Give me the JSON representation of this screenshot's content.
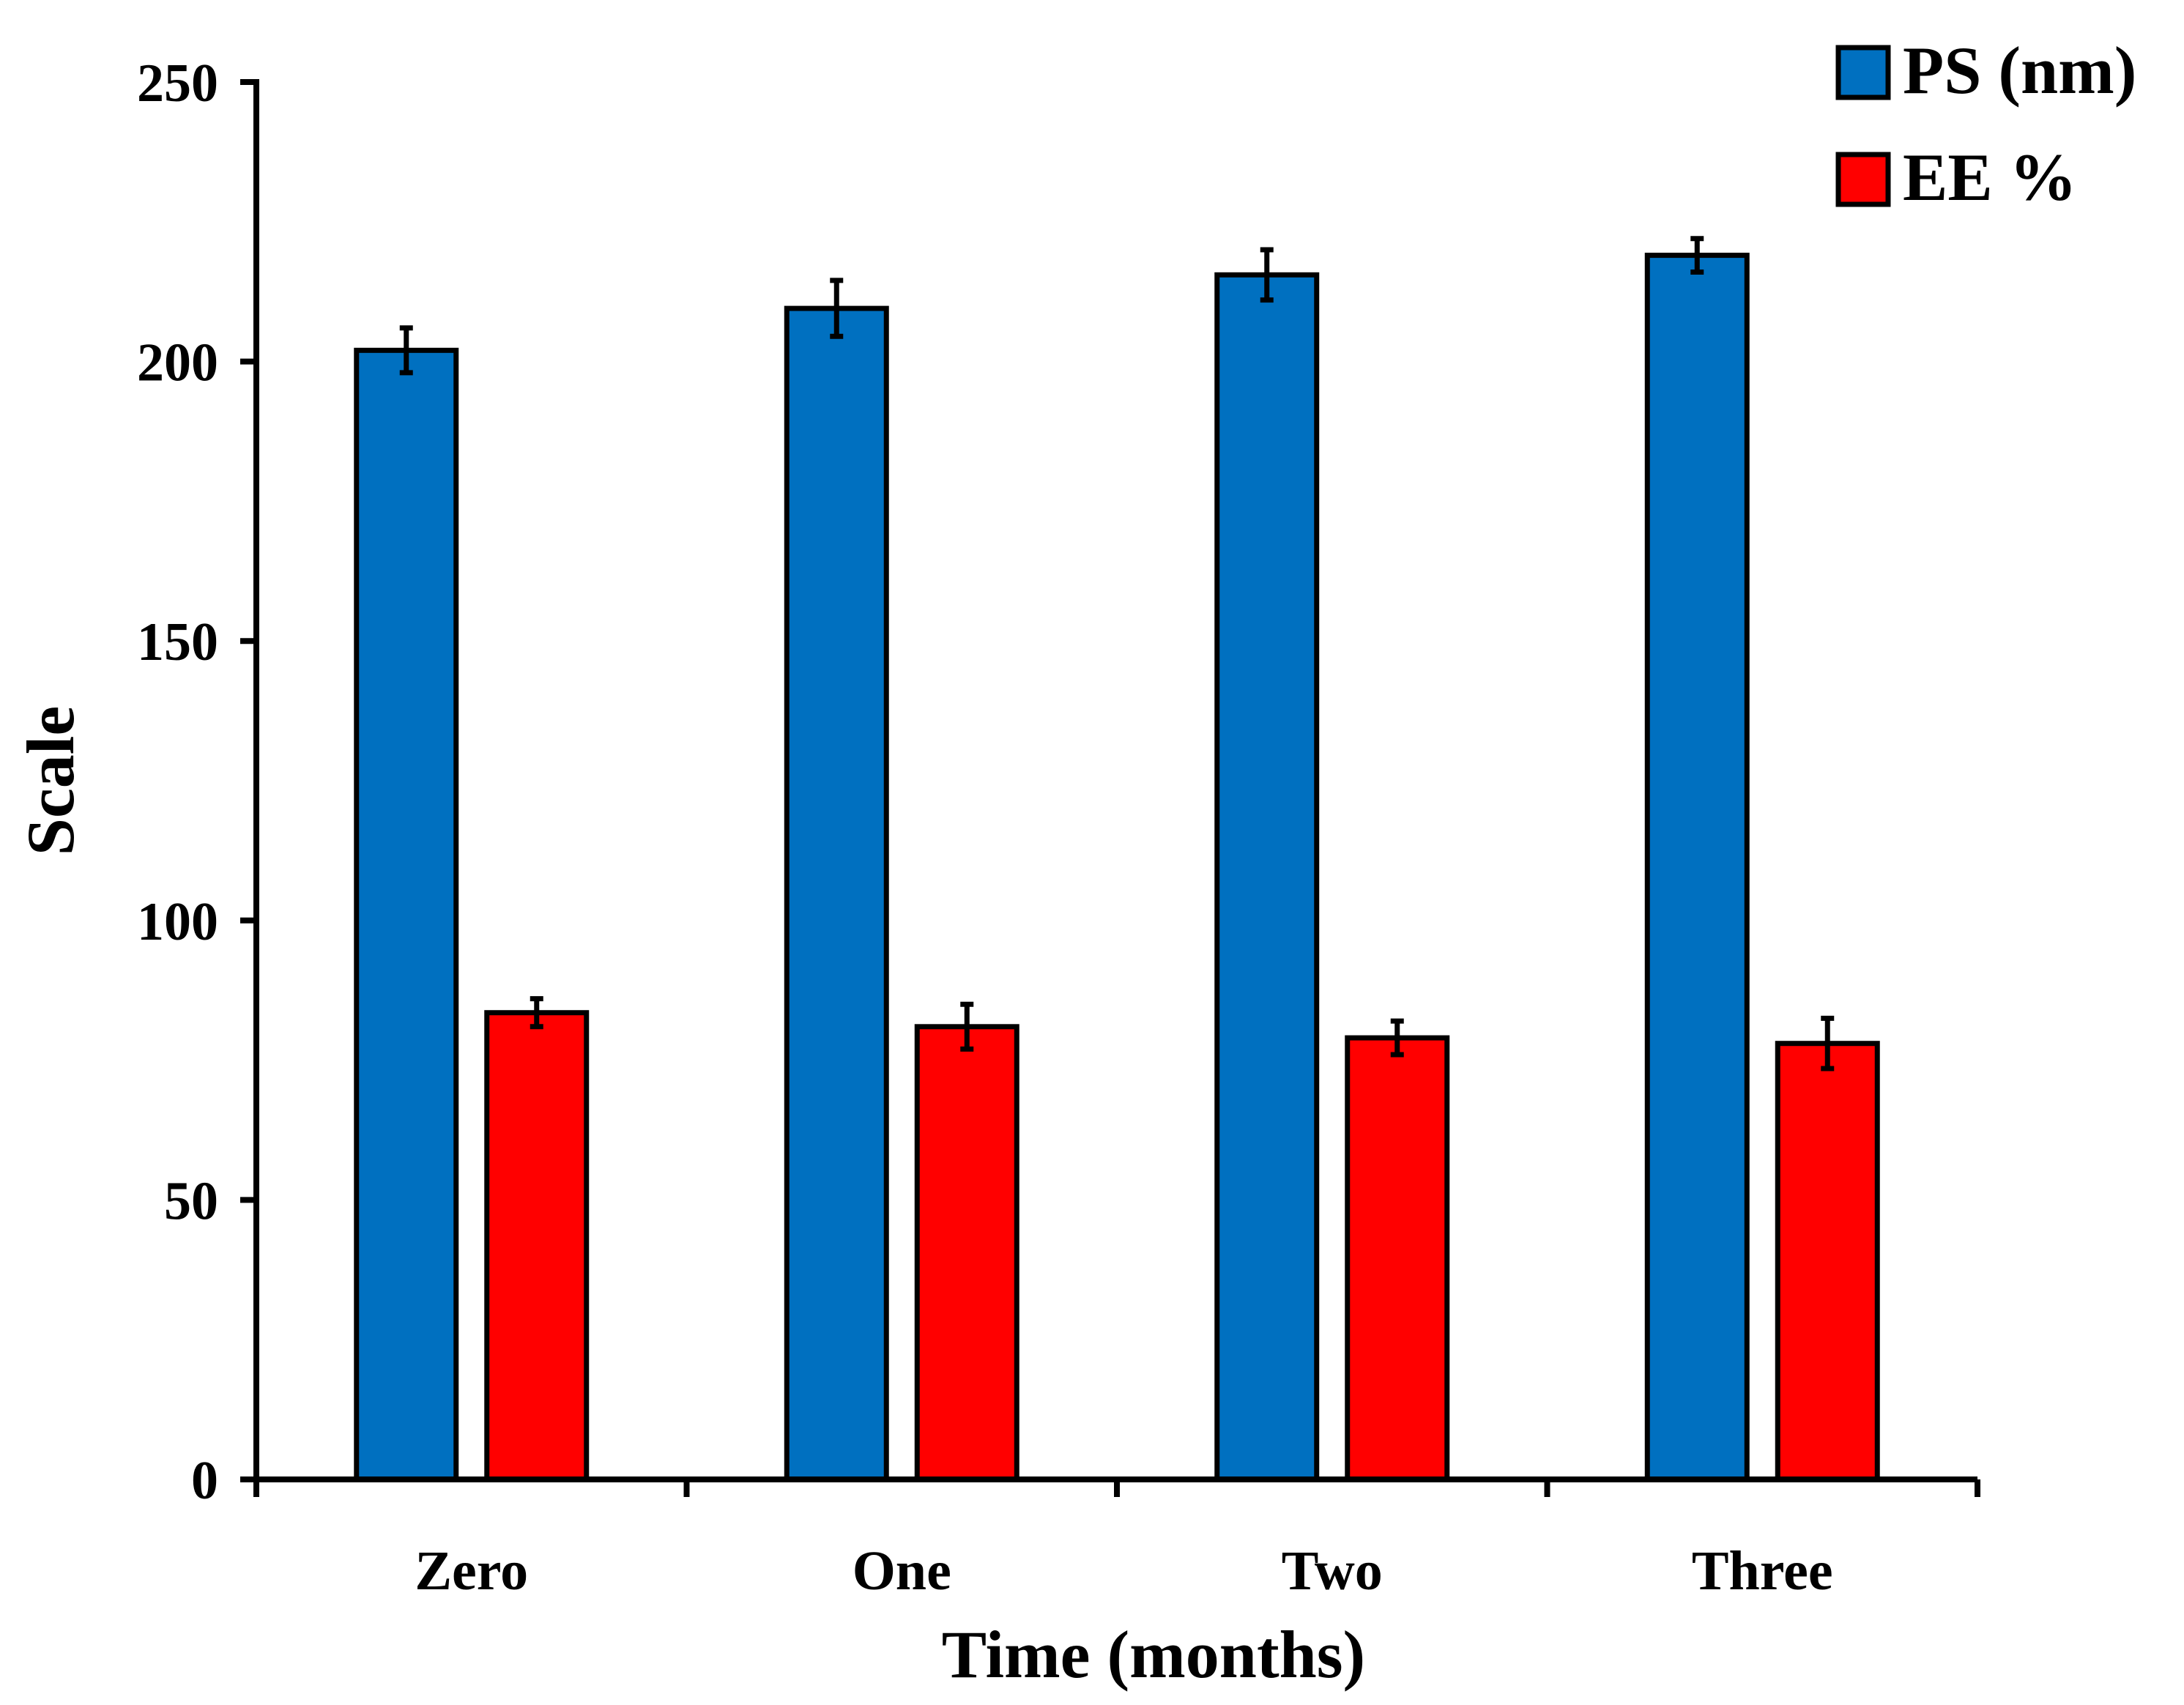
{
  "chart_data": {
    "type": "bar",
    "title": "",
    "xlabel": "Time (months)",
    "ylabel": "Scale",
    "ylim": [
      0,
      250
    ],
    "yticks": [
      0,
      50,
      100,
      150,
      200,
      250
    ],
    "grid": false,
    "legend_position": "top-right",
    "categories": [
      "Zero",
      "One",
      "Two",
      "Three"
    ],
    "series": [
      {
        "name": "PS (nm)",
        "color": "#0070C0",
        "values": [
          202,
          209.5,
          215.5,
          219
        ],
        "errors": [
          4,
          5,
          4.5,
          3
        ]
      },
      {
        "name": "EE %",
        "color": "#FF0000",
        "values": [
          83.5,
          81,
          79,
          78
        ],
        "errors": [
          2.5,
          4,
          3,
          4.5
        ]
      }
    ]
  }
}
